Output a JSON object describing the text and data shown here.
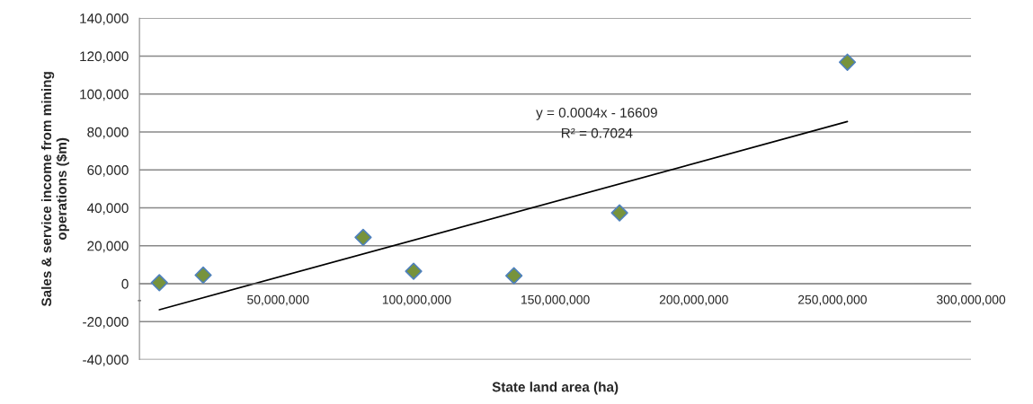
{
  "chart_data": {
    "type": "scatter",
    "xlabel": "State land area (ha)",
    "ylabel": "Sales & service income from mining\noperations ($m)",
    "series": [
      {
        "marker": "diamond",
        "color": "#77933c",
        "x": [
          7180000,
          23000000,
          80700000,
          98900000,
          135100000,
          173200000,
          255400000
        ],
        "values": [
          500,
          4500,
          24400,
          6600,
          4200,
          37300,
          116800
        ]
      },
      {
        "type": "line",
        "marker": "none",
        "color": "#000000",
        "x": [
          7180000,
          255400000
        ],
        "values": [
          -13700,
          85500
        ]
      }
    ],
    "grid": "y",
    "annotations": [
      "y = 0.0004x - 16609",
      "R² = 0.7024"
    ],
    "xlim": [
      0,
      300000000
    ],
    "ylim": [
      -40000,
      140000
    ],
    "xticks": [
      {
        "value": 0,
        "label": "-"
      },
      {
        "value": 50000000,
        "label": "50,000,000"
      },
      {
        "value": 100000000,
        "label": "100,000,000"
      },
      {
        "value": 150000000,
        "label": "150,000,000"
      },
      {
        "value": 200000000,
        "label": "200,000,000"
      },
      {
        "value": 250000000,
        "label": "250,000,000"
      },
      {
        "value": 300000000,
        "label": "300,000,000"
      }
    ],
    "yticks": [
      {
        "value": -40000,
        "label": "-40,000"
      },
      {
        "value": -20000,
        "label": "-20,000"
      },
      0,
      {
        "value": 20000,
        "label": "20,000"
      },
      {
        "value": 40000,
        "label": "40,000"
      },
      {
        "value": 60000,
        "label": "60,000"
      },
      {
        "value": 80000,
        "label": "80,000"
      },
      {
        "value": 100000,
        "label": "100,000"
      },
      {
        "value": 120000,
        "label": "120,000"
      },
      {
        "value": 140000,
        "label": "140,000"
      }
    ]
  }
}
